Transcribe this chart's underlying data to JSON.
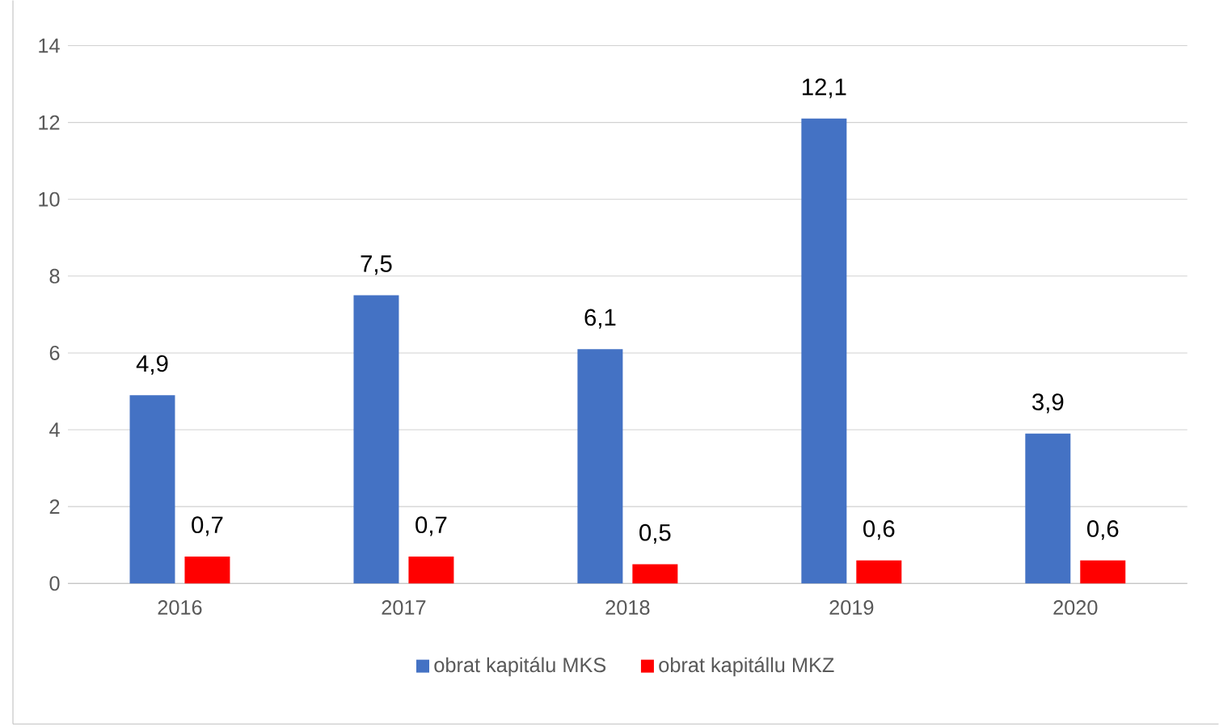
{
  "chart_data": {
    "type": "bar",
    "categories": [
      "2016",
      "2017",
      "2018",
      "2019",
      "2020"
    ],
    "series": [
      {
        "name": "obrat kapitálu MKS",
        "color": "#4472c4",
        "values": [
          4.9,
          7.5,
          6.1,
          12.1,
          3.9
        ],
        "value_labels": [
          "4,9",
          "7,5",
          "6,1",
          "12,1",
          "3,9"
        ]
      },
      {
        "name": "obrat kapitállu MKZ",
        "color": "#ff0000",
        "values": [
          0.7,
          0.7,
          0.5,
          0.6,
          0.6
        ],
        "value_labels": [
          "0,7",
          "0,7",
          "0,5",
          "0,6",
          "0,6"
        ]
      }
    ],
    "ylim": [
      0,
      14
    ],
    "yticks": [
      0,
      2,
      4,
      6,
      8,
      10,
      12,
      14
    ],
    "grid": "y",
    "legend": "bottom"
  }
}
